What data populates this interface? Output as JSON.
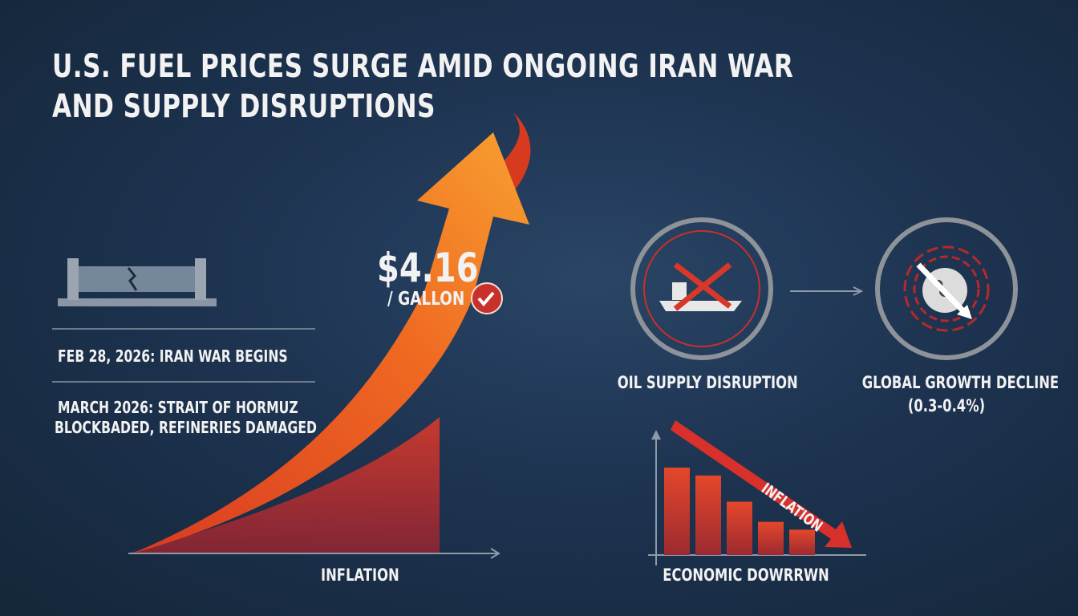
{
  "title": {
    "line1": "U.S. FUEL PRICES SURGE AMID ONGOING IRAN WAR",
    "line2": "AND SUPPLY DISRUPTIONS"
  },
  "price": {
    "value": "$4.16",
    "unit": "/ GALLON"
  },
  "timeline": [
    {
      "text": "FEB 28, 2026: IRAN WAR BEGINS"
    },
    {
      "line1": "MARCH 2026: STRAIT OF HORMUZ",
      "line2": "BLOCKBADED, REFINERIES DAMAGED"
    }
  ],
  "left_chart": {
    "xlabel": "INFLATION"
  },
  "impacts": {
    "oil": {
      "label": "OIL SUPPLY DISRUPTION"
    },
    "growth": {
      "label": "GLOBAL GROWTH DECLINE",
      "sub": "(0.3-0.4%)"
    }
  },
  "right_chart": {
    "arrow_label": "INFLATION",
    "xlabel": "ECONOMIC DOWRRWN",
    "relative_bars": [
      1.0,
      0.91,
      0.61,
      0.38,
      0.29
    ]
  },
  "colors": {
    "background": "#1d3350",
    "accent_orange": "#f07a22",
    "accent_red": "#d8382a",
    "text": "#f2f2f2"
  },
  "icons": [
    "broken-barrier-icon",
    "blocked-tanker-icon",
    "globe-decline-icon",
    "checkmark-badge-icon"
  ]
}
